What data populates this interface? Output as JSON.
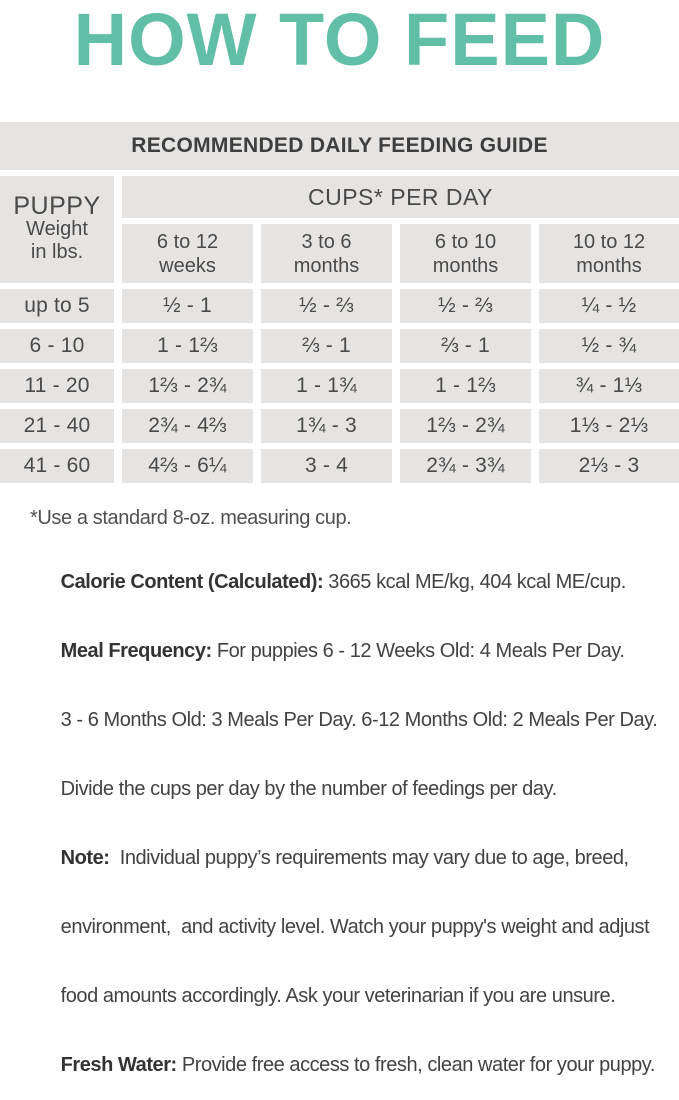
{
  "page": {
    "title": "HOW TO FEED",
    "accent_color": "#61BFA8",
    "cell_background": "#E5E4E3"
  },
  "table": {
    "caption": "RECOMMENDED DAILY FEEDING GUIDE",
    "weight_header": {
      "line1": "PUPPY",
      "line2": "Weight",
      "line3": "in lbs."
    },
    "cups_header": "CUPS* PER DAY",
    "age_columns": [
      {
        "line1": "6 to 12",
        "line2": "weeks"
      },
      {
        "line1": "3 to 6",
        "line2": "months"
      },
      {
        "line1": "6 to 10",
        "line2": "months"
      },
      {
        "line1": "10 to 12",
        "line2": "months"
      }
    ],
    "rows": [
      {
        "weight": "up to 5",
        "cups": [
          "½ - 1",
          "½ - ⅔",
          "½ - ⅔",
          "¼ - ½"
        ]
      },
      {
        "weight": "6 - 10",
        "cups": [
          "1 - 1⅔",
          "⅔ - 1",
          "⅔ - 1",
          "½ - ¾"
        ]
      },
      {
        "weight": "11 - 20",
        "cups": [
          "1⅔ - 2¾",
          "1 - 1¾",
          "1 - 1⅔",
          "¾ - 1⅓"
        ]
      },
      {
        "weight": "21 - 40",
        "cups": [
          "2¾ - 4⅔",
          "1¾ - 3",
          "1⅔ - 2¾",
          "1⅓ - 2⅓"
        ]
      },
      {
        "weight": "41 - 60",
        "cups": [
          "4⅔  - 6¼",
          "3 - 4",
          "2¾ - 3¾",
          "2⅓ - 3"
        ]
      }
    ]
  },
  "footnote": "*Use a standard 8-oz. measuring cup.",
  "info": {
    "lines": [
      {
        "bold": "Calorie Content (Calculated):",
        "text": " 3665 kcal ME/kg, 404 kcal ME/cup."
      },
      {
        "bold": "Meal Frequency:",
        "text": " For puppies 6 - 12 Weeks Old: 4 Meals Per Day."
      },
      {
        "bold": "",
        "text": "3 - 6 Months Old: 3 Meals Per Day. 6-12 Months Old: 2 Meals Per Day."
      },
      {
        "bold": "",
        "text": "Divide the cups per day by the number of feedings per day."
      },
      {
        "bold": "Note:",
        "text": "  Individual puppy’s requirements may vary due to age, breed,"
      },
      {
        "bold": "",
        "text": "environment,  and activity level. Watch your puppy's weight and adjust"
      },
      {
        "bold": "",
        "text": "food amounts accordingly. Ask your veterinarian if you are unsure."
      },
      {
        "bold": "Fresh Water:",
        "text": " Provide free access to fresh, clean water for your puppy."
      }
    ]
  }
}
